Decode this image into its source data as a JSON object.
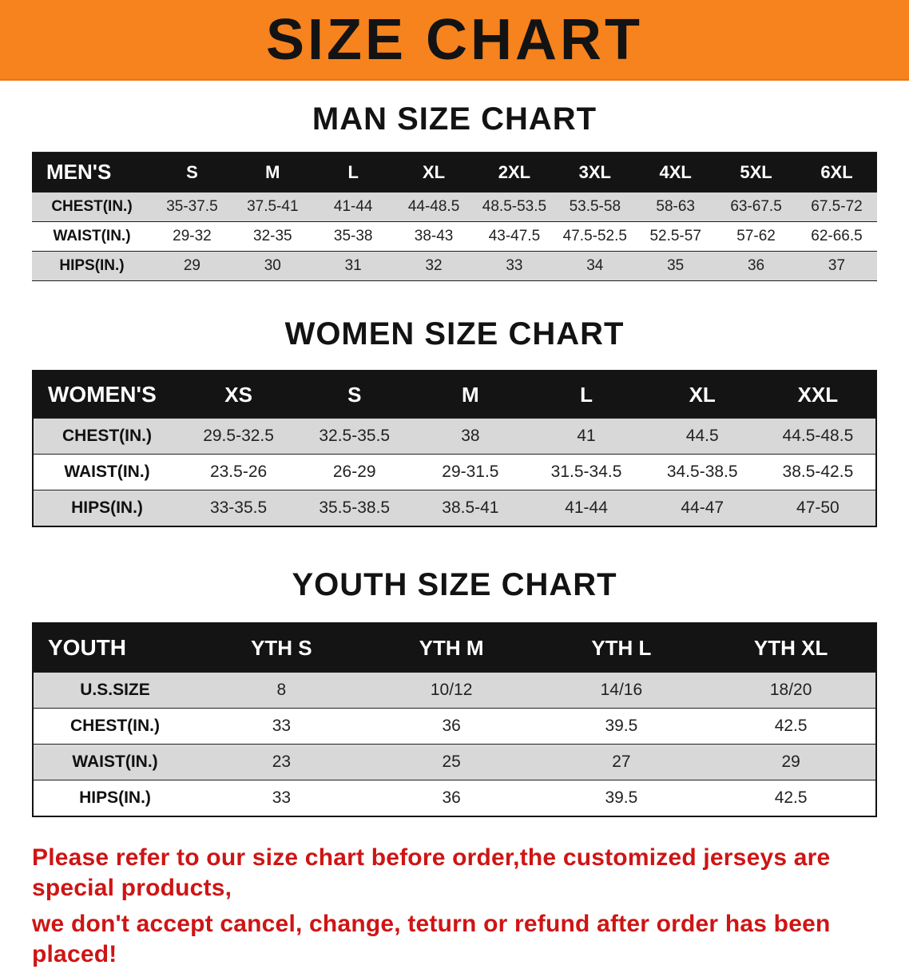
{
  "banner": {
    "title": "SIZE CHART"
  },
  "sections": [
    {
      "heading": "MAN SIZE CHART",
      "table": {
        "header": [
          "MEN'S",
          "S",
          "M",
          "L",
          "XL",
          "2XL",
          "3XL",
          "4XL",
          "5XL",
          "6XL"
        ],
        "rows": [
          {
            "label": "CHEST(IN.)",
            "values": [
              "35-37.5",
              "37.5-41",
              "41-44",
              "44-48.5",
              "48.5-53.5",
              "53.5-58",
              "58-63",
              "63-67.5",
              "67.5-72"
            ]
          },
          {
            "label": "WAIST(IN.)",
            "values": [
              "29-32",
              "32-35",
              "35-38",
              "38-43",
              "43-47.5",
              "47.5-52.5",
              "52.5-57",
              "57-62",
              "62-66.5"
            ]
          },
          {
            "label": "HIPS(IN.)",
            "values": [
              "29",
              "30",
              "31",
              "32",
              "33",
              "34",
              "35",
              "36",
              "37"
            ]
          }
        ]
      }
    },
    {
      "heading": "WOMEN SIZE CHART",
      "table": {
        "header": [
          "WOMEN'S",
          "XS",
          "S",
          "M",
          "L",
          "XL",
          "XXL"
        ],
        "rows": [
          {
            "label": "CHEST(IN.)",
            "values": [
              "29.5-32.5",
              "32.5-35.5",
              "38",
              "41",
              "44.5",
              "44.5-48.5"
            ]
          },
          {
            "label": "WAIST(IN.)",
            "values": [
              "23.5-26",
              "26-29",
              "29-31.5",
              "31.5-34.5",
              "34.5-38.5",
              "38.5-42.5"
            ]
          },
          {
            "label": "HIPS(IN.)",
            "values": [
              "33-35.5",
              "35.5-38.5",
              "38.5-41",
              "41-44",
              "44-47",
              "47-50"
            ]
          }
        ]
      }
    },
    {
      "heading": "YOUTH SIZE CHART",
      "table": {
        "header": [
          "YOUTH",
          "YTH S",
          "YTH M",
          "YTH L",
          "YTH XL"
        ],
        "rows": [
          {
            "label": "U.S.SIZE",
            "values": [
              "8",
              "10/12",
              "14/16",
              "18/20"
            ]
          },
          {
            "label": "CHEST(IN.)",
            "values": [
              "33",
              "36",
              "39.5",
              "42.5"
            ]
          },
          {
            "label": "WAIST(IN.)",
            "values": [
              "23",
              "25",
              "27",
              "29"
            ]
          },
          {
            "label": "HIPS(IN.)",
            "values": [
              "33",
              "36",
              "39.5",
              "42.5"
            ]
          }
        ]
      }
    }
  ],
  "disclaimer": {
    "line1": "Please refer to our size chart before order,the customized jerseys are special products,",
    "line2": "we don't accept cancel, change, teturn or refund after order has been placed!"
  },
  "colors": {
    "banner_orange": "#f6831d",
    "header_black": "#141414",
    "stripe_gray": "#d8d8d8",
    "disclaimer_red": "#ce1515"
  }
}
